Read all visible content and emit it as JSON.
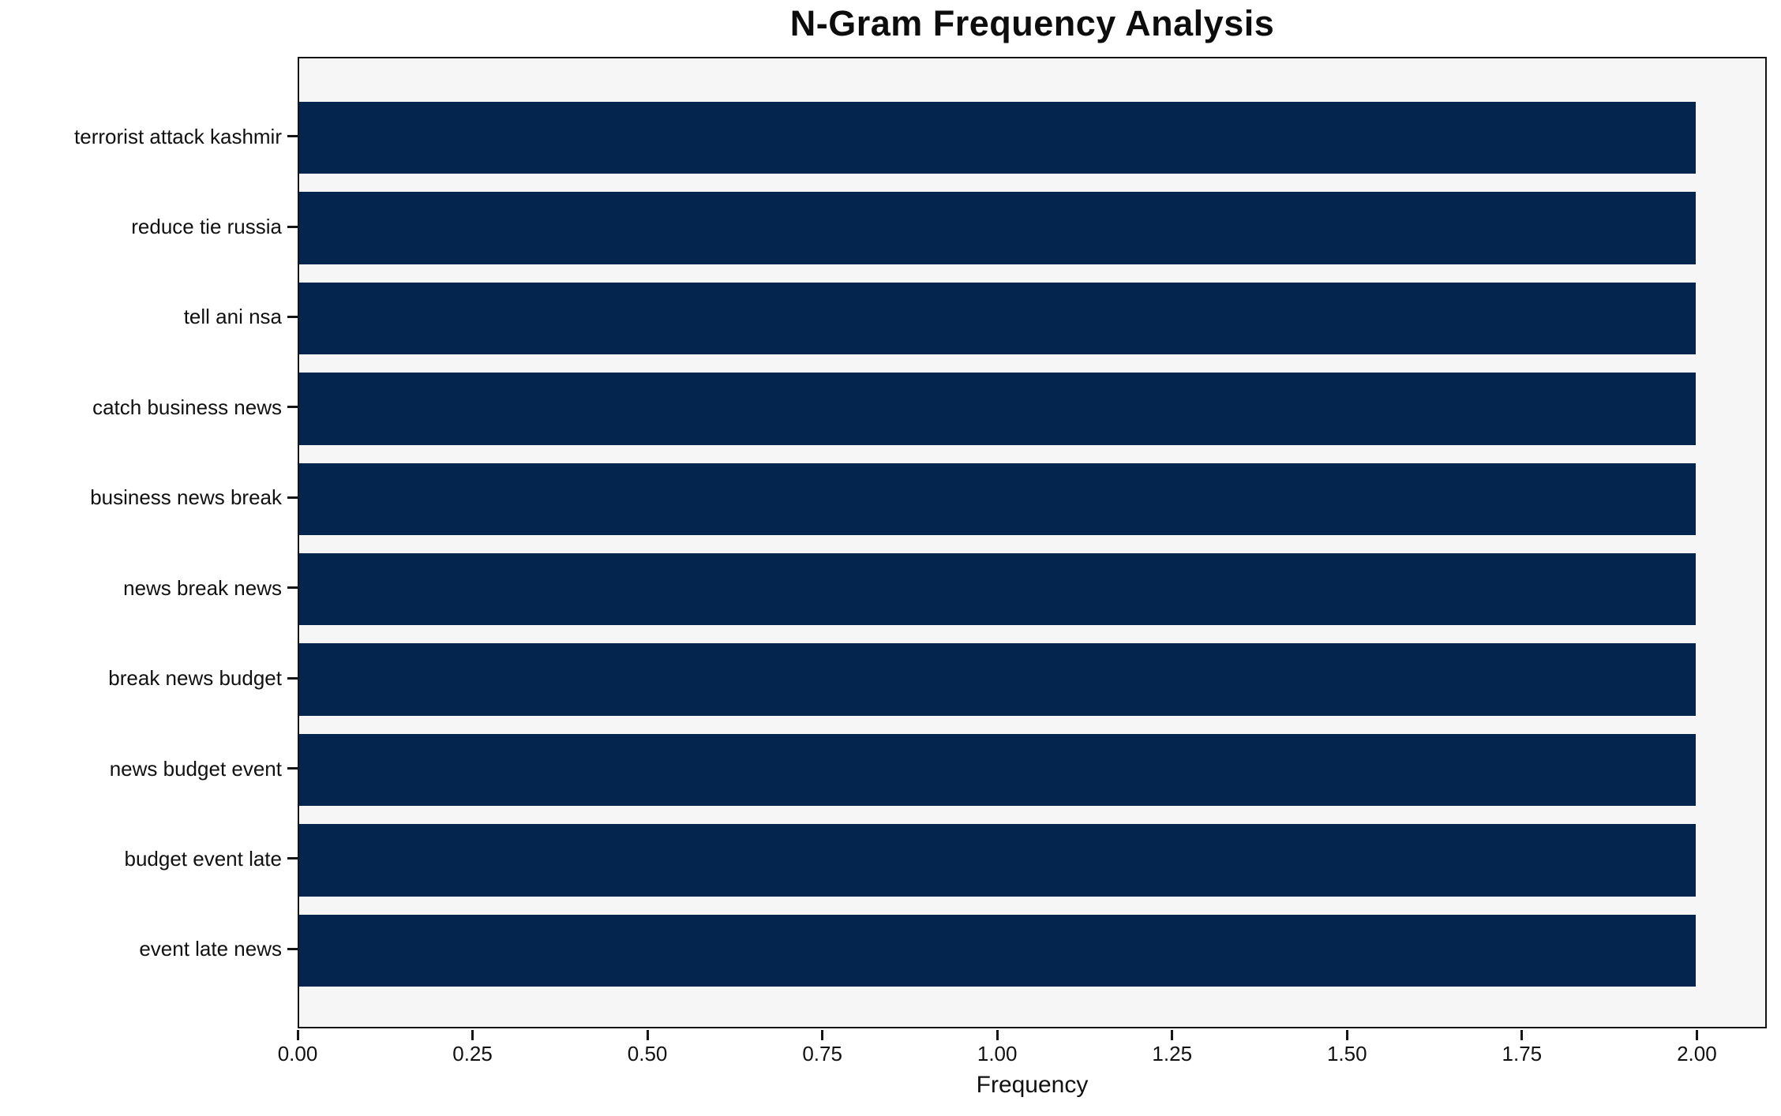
{
  "chart_data": {
    "type": "bar",
    "orientation": "horizontal",
    "title": "N-Gram Frequency Analysis",
    "xlabel": "Frequency",
    "ylabel": "",
    "categories": [
      "terrorist attack kashmir",
      "reduce tie russia",
      "tell ani nsa",
      "catch business news",
      "business news break",
      "news break news",
      "break news budget",
      "news budget event",
      "budget event late",
      "event late news"
    ],
    "values": [
      2,
      2,
      2,
      2,
      2,
      2,
      2,
      2,
      2,
      2
    ],
    "xlim": [
      0,
      2.1
    ],
    "xticks": [
      {
        "value": 0.0,
        "label": "0.00"
      },
      {
        "value": 0.25,
        "label": "0.25"
      },
      {
        "value": 0.5,
        "label": "0.50"
      },
      {
        "value": 0.75,
        "label": "0.75"
      },
      {
        "value": 1.0,
        "label": "1.00"
      },
      {
        "value": 1.25,
        "label": "1.25"
      },
      {
        "value": 1.5,
        "label": "1.50"
      },
      {
        "value": 1.75,
        "label": "1.75"
      },
      {
        "value": 2.0,
        "label": "2.00"
      }
    ],
    "grid": false,
    "legend": null,
    "colors": {
      "bar": "#03254e",
      "plot_background": "#f6f6f6",
      "figure_background": "#ffffff",
      "spine": "#151515",
      "text": "#111111"
    }
  }
}
